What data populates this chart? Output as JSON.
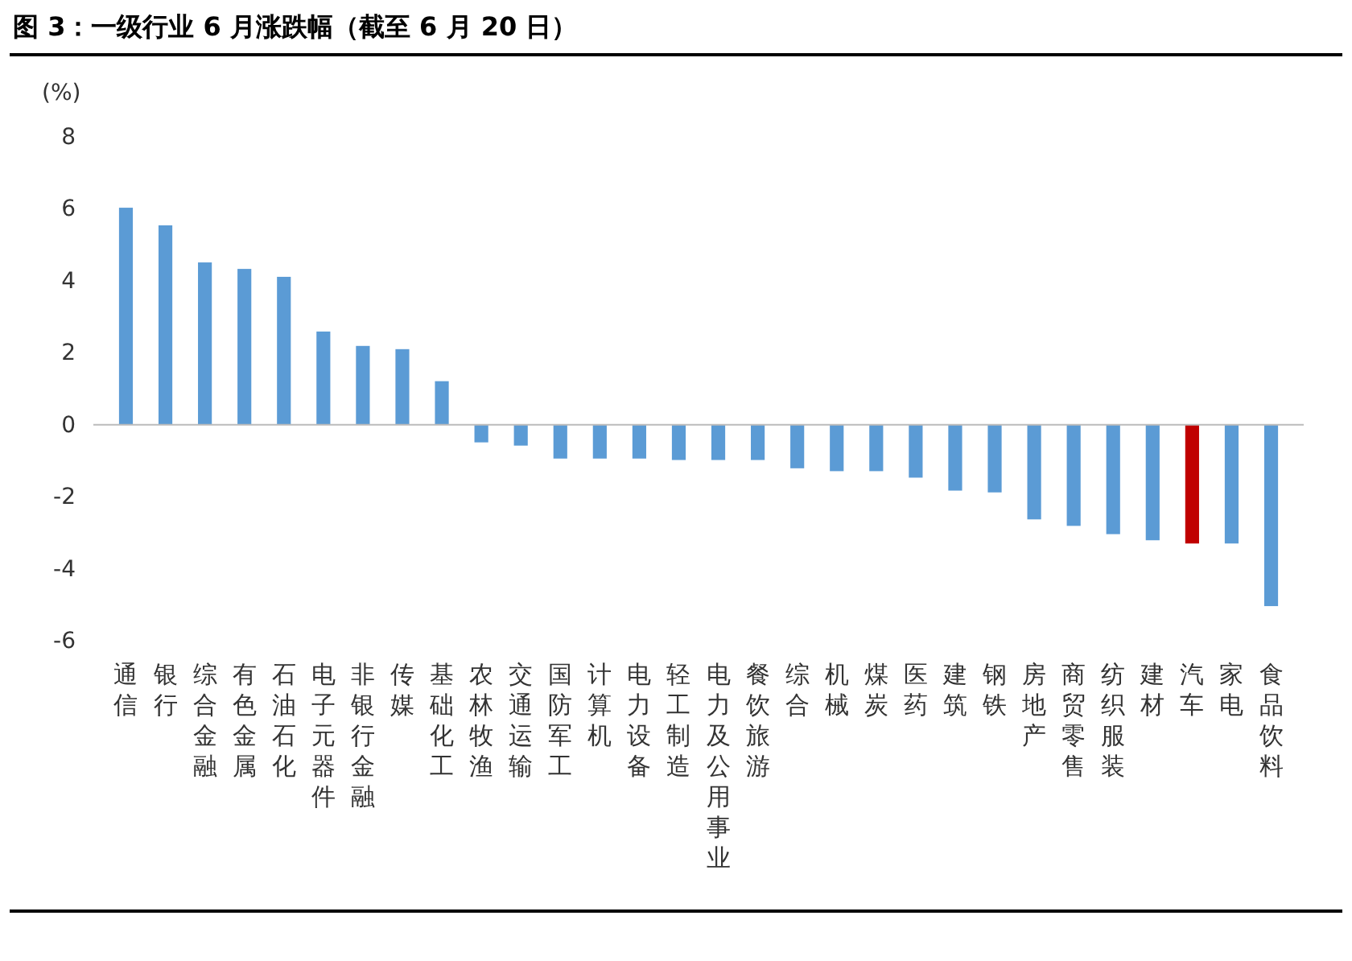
{
  "chart_data": {
    "type": "bar",
    "title": "图 3：一级行业 6 月涨跌幅（截至 6 月 20 日）",
    "ylabel": "(%)",
    "categories": [
      "通信",
      "银行",
      "综合金融",
      "有色金属",
      "石油石化",
      "电子元器件",
      "非银行金融",
      "传媒",
      "基础化工",
      "农林牧渔",
      "交通运输",
      "国防军工",
      "计算机",
      "电力设备",
      "轻工制造",
      "电力及公用事业",
      "餐饮旅游",
      "综合",
      "机械",
      "煤炭",
      "医药",
      "建筑",
      "钢铁",
      "房地产",
      "商贸零售",
      "纺织服装",
      "建材",
      "汽车",
      "家电",
      "食品饮料"
    ],
    "values": [
      6.03,
      5.54,
      4.51,
      4.33,
      4.11,
      2.59,
      2.19,
      2.1,
      1.21,
      -0.49,
      -0.58,
      -0.94,
      -0.94,
      -0.94,
      -0.98,
      -0.98,
      -0.98,
      -1.21,
      -1.29,
      -1.29,
      -1.47,
      -1.83,
      -1.88,
      -2.63,
      -2.81,
      -3.04,
      -3.21,
      -3.3,
      -3.3,
      -5.04
    ],
    "colors": [
      "#5b9bd5",
      "#5b9bd5",
      "#5b9bd5",
      "#5b9bd5",
      "#5b9bd5",
      "#5b9bd5",
      "#5b9bd5",
      "#5b9bd5",
      "#5b9bd5",
      "#5b9bd5",
      "#5b9bd5",
      "#5b9bd5",
      "#5b9bd5",
      "#5b9bd5",
      "#5b9bd5",
      "#5b9bd5",
      "#5b9bd5",
      "#5b9bd5",
      "#5b9bd5",
      "#5b9bd5",
      "#5b9bd5",
      "#5b9bd5",
      "#5b9bd5",
      "#5b9bd5",
      "#5b9bd5",
      "#5b9bd5",
      "#5b9bd5",
      "#c00000",
      "#5b9bd5",
      "#5b9bd5"
    ],
    "ylim": [
      -6,
      8
    ],
    "yticks": [
      -6,
      -4,
      -2,
      0,
      2,
      4,
      6,
      8
    ]
  }
}
